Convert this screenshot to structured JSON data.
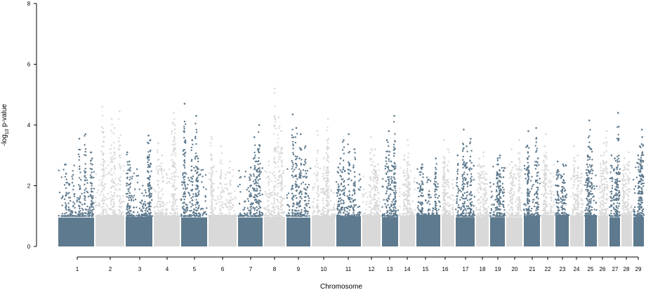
{
  "chart_data": {
    "type": "scatter",
    "subtype": "manhattan",
    "title": "",
    "xlabel": "Chromosome",
    "ylabel_prefix": "-log",
    "ylabel_sub": "10",
    "ylabel_suffix": " p-value",
    "ylim": [
      0,
      8
    ],
    "yticks": [
      0,
      2,
      4,
      6,
      8
    ],
    "grid": false,
    "legend": "none",
    "colors": {
      "odd": "#5e7a8e",
      "even": "#d9d9d9",
      "axis": "#000000"
    },
    "chromosomes": [
      {
        "label": "1",
        "top": [
          3.7,
          3.55,
          3.1,
          2.9,
          2.7
        ]
      },
      {
        "label": "2",
        "top": [
          4.6,
          4.45,
          4.2,
          3.9,
          3.6
        ]
      },
      {
        "label": "3",
        "top": [
          3.65,
          3.5,
          3.4,
          3.1,
          2.8
        ]
      },
      {
        "label": "4",
        "top": [
          4.4,
          4.0,
          3.8,
          3.4,
          3.0
        ]
      },
      {
        "label": "5",
        "top": [
          4.7,
          4.3,
          3.8,
          3.5,
          2.9
        ]
      },
      {
        "label": "6",
        "top": [
          3.6,
          3.3,
          3.0,
          2.8,
          2.6
        ]
      },
      {
        "label": "7",
        "top": [
          4.0,
          3.6,
          3.2,
          2.8,
          2.6
        ]
      },
      {
        "label": "8",
        "top": [
          5.2,
          4.25,
          3.8,
          3.2,
          2.8
        ]
      },
      {
        "label": "9",
        "top": [
          4.35,
          3.9,
          3.7,
          3.3,
          2.9
        ]
      },
      {
        "label": "10",
        "top": [
          4.2,
          3.8,
          3.5,
          3.2,
          2.9
        ]
      },
      {
        "label": "11",
        "top": [
          3.7,
          3.5,
          3.2,
          2.9,
          2.6
        ]
      },
      {
        "label": "12",
        "top": [
          3.6,
          3.2,
          3.0,
          2.7,
          2.4
        ]
      },
      {
        "label": "13",
        "top": [
          4.3,
          3.8,
          3.5,
          3.2,
          2.8
        ]
      },
      {
        "label": "14",
        "top": [
          3.5,
          3.0,
          2.7,
          2.5,
          2.3
        ]
      },
      {
        "label": "15",
        "top": [
          2.9,
          2.7,
          2.6,
          2.4,
          2.2
        ]
      },
      {
        "label": "16",
        "top": [
          3.5,
          3.2,
          2.9,
          2.6,
          2.4
        ]
      },
      {
        "label": "17",
        "top": [
          3.85,
          3.55,
          3.3,
          3.0,
          2.7
        ]
      },
      {
        "label": "18",
        "top": [
          3.1,
          2.9,
          2.6,
          2.4,
          2.2
        ]
      },
      {
        "label": "19",
        "top": [
          3.0,
          2.9,
          2.7,
          2.5,
          2.3
        ]
      },
      {
        "label": "20",
        "top": [
          3.5,
          3.2,
          2.9,
          2.6,
          2.4
        ]
      },
      {
        "label": "21",
        "top": [
          3.9,
          3.8,
          3.3,
          2.9,
          2.6
        ]
      },
      {
        "label": "22",
        "top": [
          3.7,
          3.3,
          3.0,
          2.7,
          2.4
        ]
      },
      {
        "label": "23",
        "top": [
          2.8,
          2.7,
          2.5,
          2.3,
          2.1
        ]
      },
      {
        "label": "24",
        "top": [
          3.3,
          3.0,
          2.8,
          2.6,
          2.4
        ]
      },
      {
        "label": "25",
        "top": [
          4.15,
          3.2,
          3.0,
          2.7,
          2.5
        ]
      },
      {
        "label": "26",
        "top": [
          3.8,
          3.4,
          3.0,
          2.7,
          2.4
        ]
      },
      {
        "label": "27",
        "top": [
          4.4,
          3.0,
          2.9,
          2.6,
          2.4
        ]
      },
      {
        "label": "28",
        "top": [
          3.1,
          2.9,
          2.7,
          2.5,
          2.3
        ]
      },
      {
        "label": "29",
        "top": [
          3.85,
          3.6,
          3.3,
          3.0,
          2.7
        ]
      }
    ]
  }
}
